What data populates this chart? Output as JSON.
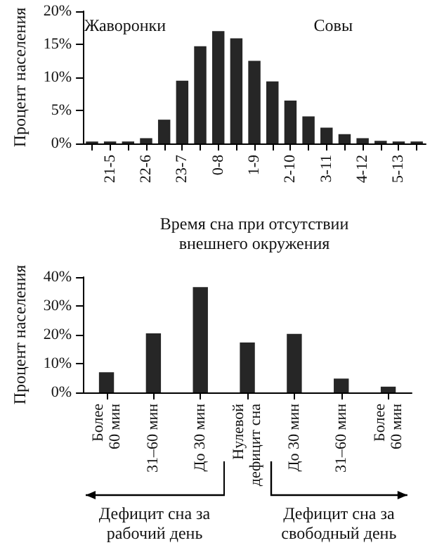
{
  "chart_data": [
    {
      "type": "bar",
      "ylabel": "Процент населения",
      "xlabel": "Время сна при отсутствии внешнего окружения",
      "categories": [
        null,
        "21-5",
        null,
        "22-6",
        null,
        "23-7",
        null,
        "0-8",
        null,
        "1-9",
        null,
        "2-10",
        null,
        "3-11",
        null,
        "4-12",
        null,
        "5-13",
        null
      ],
      "values": [
        0.3,
        0.3,
        0.3,
        0.8,
        3.6,
        9.5,
        14.7,
        17,
        15.9,
        12.5,
        9.4,
        6.5,
        4.1,
        2.4,
        1.4,
        0.8,
        0.4,
        0.3,
        0.3
      ],
      "color": "#262626",
      "ylim": [
        0,
        20
      ],
      "yticks": [
        {
          "value": 0,
          "label": "0%"
        },
        {
          "value": 5,
          "label": "5%"
        },
        {
          "value": 10,
          "label": "10%"
        },
        {
          "value": 15,
          "label": "15%"
        },
        {
          "value": 20,
          "label": "20%"
        }
      ],
      "annotations": [
        "Жаворонки",
        "Совы"
      ],
      "grid": false
    },
    {
      "type": "bar",
      "ylabel": "Процент населения",
      "categories": [
        "Более\n60 мин",
        "31–60 мин",
        "До 30 мин",
        "Нулевой\nдефицит сна",
        "До 30 мин",
        "31–60 мин",
        "Более\n60 мин"
      ],
      "values": [
        7,
        20.5,
        36.5,
        17.3,
        20.3,
        4.8,
        2
      ],
      "color": "#262626",
      "ylim": [
        0,
        40
      ],
      "yticks": [
        {
          "value": 0,
          "label": "0%"
        },
        {
          "value": 10,
          "label": "10%"
        },
        {
          "value": 20,
          "label": "20%"
        },
        {
          "value": 30,
          "label": "30%"
        },
        {
          "value": 40,
          "label": "40%"
        }
      ],
      "annotations": [
        "Дефицит сна за рабочий день",
        "Дефицит сна за свободный день"
      ],
      "grid": false
    }
  ]
}
